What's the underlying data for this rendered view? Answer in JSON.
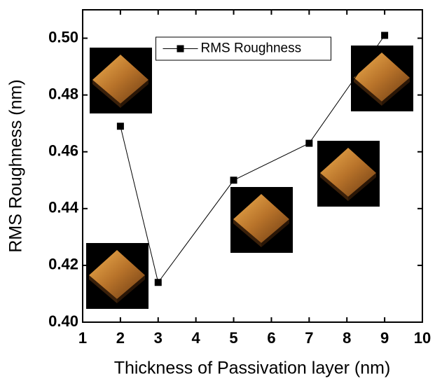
{
  "chart_data": {
    "type": "line",
    "x_label": "Thickness of Passivation layer (nm)",
    "y_label": "RMS Roughness (nm)",
    "x": [
      2,
      3,
      5,
      7,
      9
    ],
    "series": [
      {
        "name": "RMS Roughness",
        "color": "#000000",
        "values": [
          0.469,
          0.414,
          0.45,
          0.463,
          0.501
        ]
      }
    ],
    "xlim": [
      1,
      10
    ],
    "ylim": [
      0.4,
      0.51
    ],
    "xticks": [
      1,
      2,
      3,
      4,
      5,
      6,
      7,
      8,
      9,
      10
    ],
    "yticks": [
      {
        "value": 0.4,
        "label": "0.40"
      },
      {
        "value": 0.42,
        "label": "0.42"
      },
      {
        "value": 0.44,
        "label": "0.44"
      },
      {
        "value": 0.46,
        "label": "0.46"
      },
      {
        "value": 0.48,
        "label": "0.48"
      },
      {
        "value": 0.5,
        "label": "0.50"
      }
    ],
    "legend": "upper center",
    "grid": false
  }
}
